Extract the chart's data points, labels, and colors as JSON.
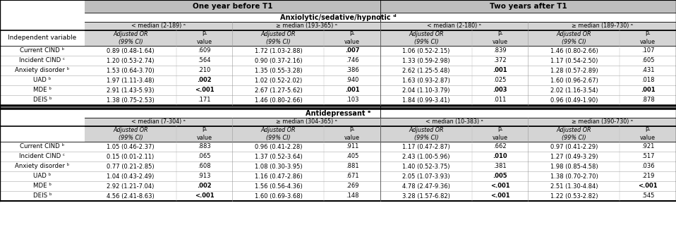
{
  "top_headers": [
    "One year before T1",
    "Two years after T1"
  ],
  "section1_label": "Anxiolytic/sedative/hypnotic ᵈ",
  "section2_label": "Antidepressant ᵉ",
  "col_group_headers_anx": [
    "< median (2-189) ᵃ",
    "≥ median (193-365) ᵃ",
    "< median (2-180) ᵃ",
    "≥ median (189-730) ᵃ"
  ],
  "col_group_headers_ant": [
    "< median (7-304) ᵃ",
    "≥ median (304-365) ᵃ",
    "< median (10-383) ᵃ",
    "≥ median (390-730) ᵃ"
  ],
  "independent_var_label": "Independent variable",
  "row_labels": [
    "Current CIND ᵇ",
    "Incident CIND ᶜ",
    "Anxiety disorder ᵇ",
    "UAD ᵇ",
    "MDE ᵇ",
    "DEIS ᵇ"
  ],
  "anx_data": [
    [
      "0.89 (0.48-1.64)",
      ".609",
      "1.72 (1.03-2.88)",
      ".007",
      "1.06 (0.52-2.15)",
      ".839",
      "1.46 (0.80-2.66)",
      ".107"
    ],
    [
      "1.20 (0.53-2.74)",
      ".564",
      "0.90 (0.37-2.16)",
      ".746",
      "1.33 (0.59-2.98)",
      ".372",
      "1.17 (0.54-2.50)",
      ".605"
    ],
    [
      "1.53 (0.64-3.70)",
      ".210",
      "1.35 (0.55-3.28)",
      ".386",
      "2.62 (1.25-5.48)",
      ".001",
      "1.28 (0.57-2.89)",
      ".431"
    ],
    [
      "1.97 (1.11-3.48)",
      ".002",
      "1.02 (0.52-2.02)",
      ".940",
      "1.63 (0.93-2.87)",
      ".025",
      "1.60 (0.96-2.67)",
      ".018"
    ],
    [
      "2.91 (1.43-5.93)",
      "<.001",
      "2.67 (1.27-5.62)",
      ".001",
      "2.04 (1.10-3.79)",
      ".003",
      "2.02 (1.16-3.54)",
      ".001"
    ],
    [
      "1.38 (0.75-2.53)",
      ".171",
      "1.46 (0.80-2.66)",
      ".103",
      "1.84 (0.99-3.41)",
      ".011",
      "0.96 (0.49-1.90)",
      ".878"
    ]
  ],
  "ant_data": [
    [
      "1.05 (0.46-2.37)",
      ".883",
      "0.96 (0.41-2.28)",
      ".911",
      "1.17 (0.47-2.87)",
      ".662",
      "0.97 (0.41-2.29)",
      ".921"
    ],
    [
      "0.15 (0.01-2.11)",
      ".065",
      "1.37 (0.52-3.64)",
      ".405",
      "2.43 (1.00-5.96)",
      ".010",
      "1.27 (0.49-3.29)",
      ".517"
    ],
    [
      "0.77 (0.21-2.85)",
      ".608",
      "1.08 (0.30-3.95)",
      ".881",
      "1.40 (0.52-3.75)",
      ".381",
      "1.98 (0.85-4.58)",
      ".036"
    ],
    [
      "1.04 (0.43-2.49)",
      ".913",
      "1.16 (0.47-2.86)",
      ".671",
      "2.05 (1.07-3.93)",
      ".005",
      "1.38 (0.70-2.70)",
      ".219"
    ],
    [
      "2.92 (1.21-7.04)",
      ".002",
      "1.56 (0.56-4.36)",
      ".269",
      "4.78 (2.47-9.36)",
      "<.001",
      "2.51 (1.30-4.84)",
      "<.001"
    ],
    [
      "4.56 (2.41-8.63)",
      "<.001",
      "1.60 (0.69-3.68)",
      ".148",
      "3.28 (1.57-6.82)",
      "<.001",
      "1.22 (0.53-2.82)",
      ".545"
    ]
  ],
  "bold_values_anx": [
    [
      false,
      false,
      false,
      true,
      false,
      false,
      false,
      false
    ],
    [
      false,
      false,
      false,
      false,
      false,
      false,
      false,
      false
    ],
    [
      false,
      false,
      false,
      false,
      false,
      true,
      false,
      false
    ],
    [
      false,
      true,
      false,
      false,
      false,
      false,
      false,
      false
    ],
    [
      false,
      true,
      false,
      true,
      false,
      true,
      false,
      true
    ],
    [
      false,
      false,
      false,
      false,
      false,
      false,
      false,
      false
    ]
  ],
  "bold_values_ant": [
    [
      false,
      false,
      false,
      false,
      false,
      false,
      false,
      false
    ],
    [
      false,
      false,
      false,
      false,
      false,
      true,
      false,
      false
    ],
    [
      false,
      false,
      false,
      false,
      false,
      false,
      false,
      false
    ],
    [
      false,
      false,
      false,
      false,
      false,
      true,
      false,
      false
    ],
    [
      false,
      true,
      false,
      false,
      false,
      true,
      false,
      true
    ],
    [
      false,
      true,
      false,
      false,
      false,
      true,
      false,
      false
    ]
  ],
  "bg_header": "#bebebe",
  "bg_subheader": "#d4d4d4",
  "bg_white": "#ffffff",
  "bg_section_sep": "#888888"
}
